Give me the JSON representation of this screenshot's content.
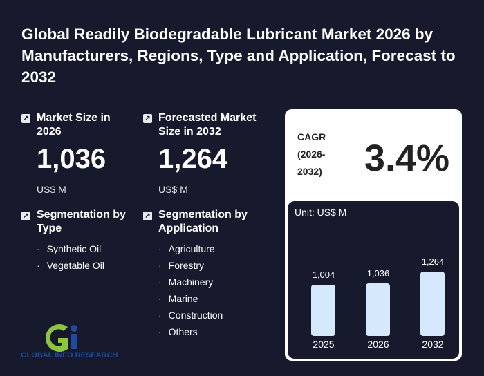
{
  "title": "Global Readily Biodegradable Lubricant Market 2026 by Manufacturers, Regions, Type and Application, Forecast to 2032",
  "market_size": {
    "label": "Market Size in 2026",
    "value": "1,036",
    "unit": "US$ M"
  },
  "forecast": {
    "label": "Forecasted Market Size in 2032",
    "value": "1,264",
    "unit": "US$ M"
  },
  "seg_type": {
    "label": "Segmentation by Type",
    "items": [
      "Synthetic Oil",
      "Vegetable Oil"
    ]
  },
  "seg_app": {
    "label": "Segmentation by Application",
    "items": [
      "Agriculture",
      "Forestry",
      "Machinery",
      "Marine",
      "Construction",
      "Others"
    ]
  },
  "cagr": {
    "label": "CAGR (2026-2032)",
    "value": "3.4%"
  },
  "logo": {
    "text": "GLOBAL INFO RESEARCH"
  },
  "chart_data": {
    "type": "bar",
    "unit_label": "Unit: US$ M",
    "categories": [
      "2025",
      "2026",
      "2032"
    ],
    "values": [
      1004,
      1036,
      1264
    ],
    "value_labels": [
      "1,004",
      "1,036",
      "1,264"
    ],
    "color": "#d6e8fc"
  }
}
